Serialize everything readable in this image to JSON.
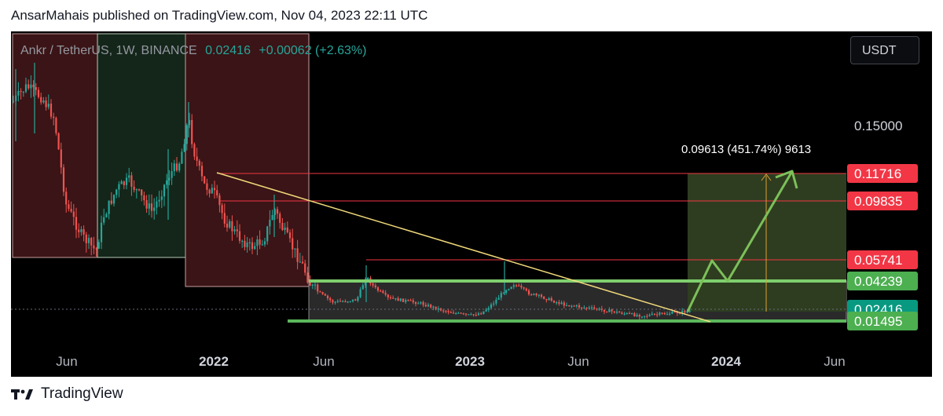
{
  "header": {
    "published": "AnsarMahais published on TradingView.com, Nov 04, 2023 22:11 UTC"
  },
  "legend": {
    "symbol": "Ankr / TetherUS, 1W, BINANCE",
    "price": "0.02416",
    "change": "+0.00062 (+2.63%)"
  },
  "currency_button": "USDT",
  "footer": {
    "brand": "TradingView",
    "logo_icon": "tradingview-logo-icon"
  },
  "colors": {
    "up": "#26a69a",
    "down": "#ef5350",
    "level_line": "#f23645",
    "trendline": "#f0d97a",
    "support": "#66bb6a",
    "projection": "#7cc05a"
  },
  "chart_data": {
    "type": "candlestick",
    "x_tick_labels": [
      "Jun",
      "2022",
      "Jun",
      "2023",
      "Jun",
      "2024",
      "Jun"
    ],
    "y_labels": [
      {
        "value": 0.15,
        "text": "0.15000",
        "style": "plain"
      },
      {
        "value": 0.11716,
        "text": "0.11716",
        "style": "red"
      },
      {
        "value": 0.09835,
        "text": "0.09835",
        "style": "red"
      },
      {
        "value": 0.05741,
        "text": "0.05741",
        "style": "red"
      },
      {
        "value": 0.04239,
        "text": "0.04239",
        "style": "green"
      },
      {
        "value": 0.02416,
        "text": "0.02416",
        "style": "teal"
      },
      {
        "value": 0.01495,
        "text": "0.01495",
        "style": "green"
      }
    ],
    "horizontal_levels": [
      0.11716,
      0.09835,
      0.05741,
      0.04239,
      0.01495
    ],
    "projection_label": "0.09613 (451.74%) 9613",
    "last_price": 0.02416
  }
}
